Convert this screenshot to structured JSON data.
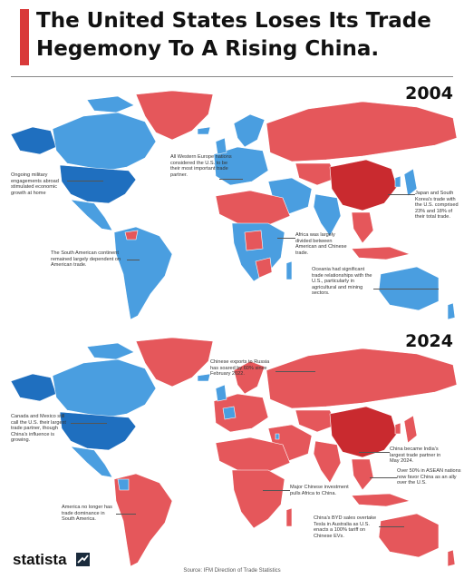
{
  "header": {
    "title_line1": "The United States Loses Its Trade",
    "title_line2": "Hegemony To A Rising China.",
    "accent_color": "#d93a3a"
  },
  "legend_colors": {
    "china": "#e5575b",
    "us_dark": "#1f6fbf",
    "us_light": "#4a9ee0",
    "neutral": "#c7d2da"
  },
  "maps": [
    {
      "year": "2004",
      "notes": [
        "Ongoing military engagements abroad stimulated economic growth at home",
        "All Western Europe nations considered the U.S. to be their most important trade partner.",
        "Japan and South Korea's trade with the U.S. comprised 23% and 18% of their total trade.",
        "Africa was largely divided between American and Chinese trade.",
        "The South American continent remained largely dependent on American trade.",
        "Oceania had significant trade relationships with the U.S., particularly in agricultural and mining sectors."
      ]
    },
    {
      "year": "2024",
      "notes": [
        "Chinese exports to Russia has soared by 60% since February 2022.",
        "Canada and Mexico still call the U.S. their largest trade partner, though China's influence is growing.",
        "China became India's largest trade partner in May 2024.",
        "Over 50% in ASEAN nations now favor China as an ally over the U.S.",
        "Major Chinese investment pulls Africa to China.",
        "America no longer has trade dominance in South America.",
        "China's BYD sales overtake Tesla in Australia as U.S. enacts a 100% tariff on Chinese EVs."
      ]
    }
  ],
  "footer": {
    "brand": "statista",
    "source": "Source: IFM Direction of Trade Statistics"
  }
}
